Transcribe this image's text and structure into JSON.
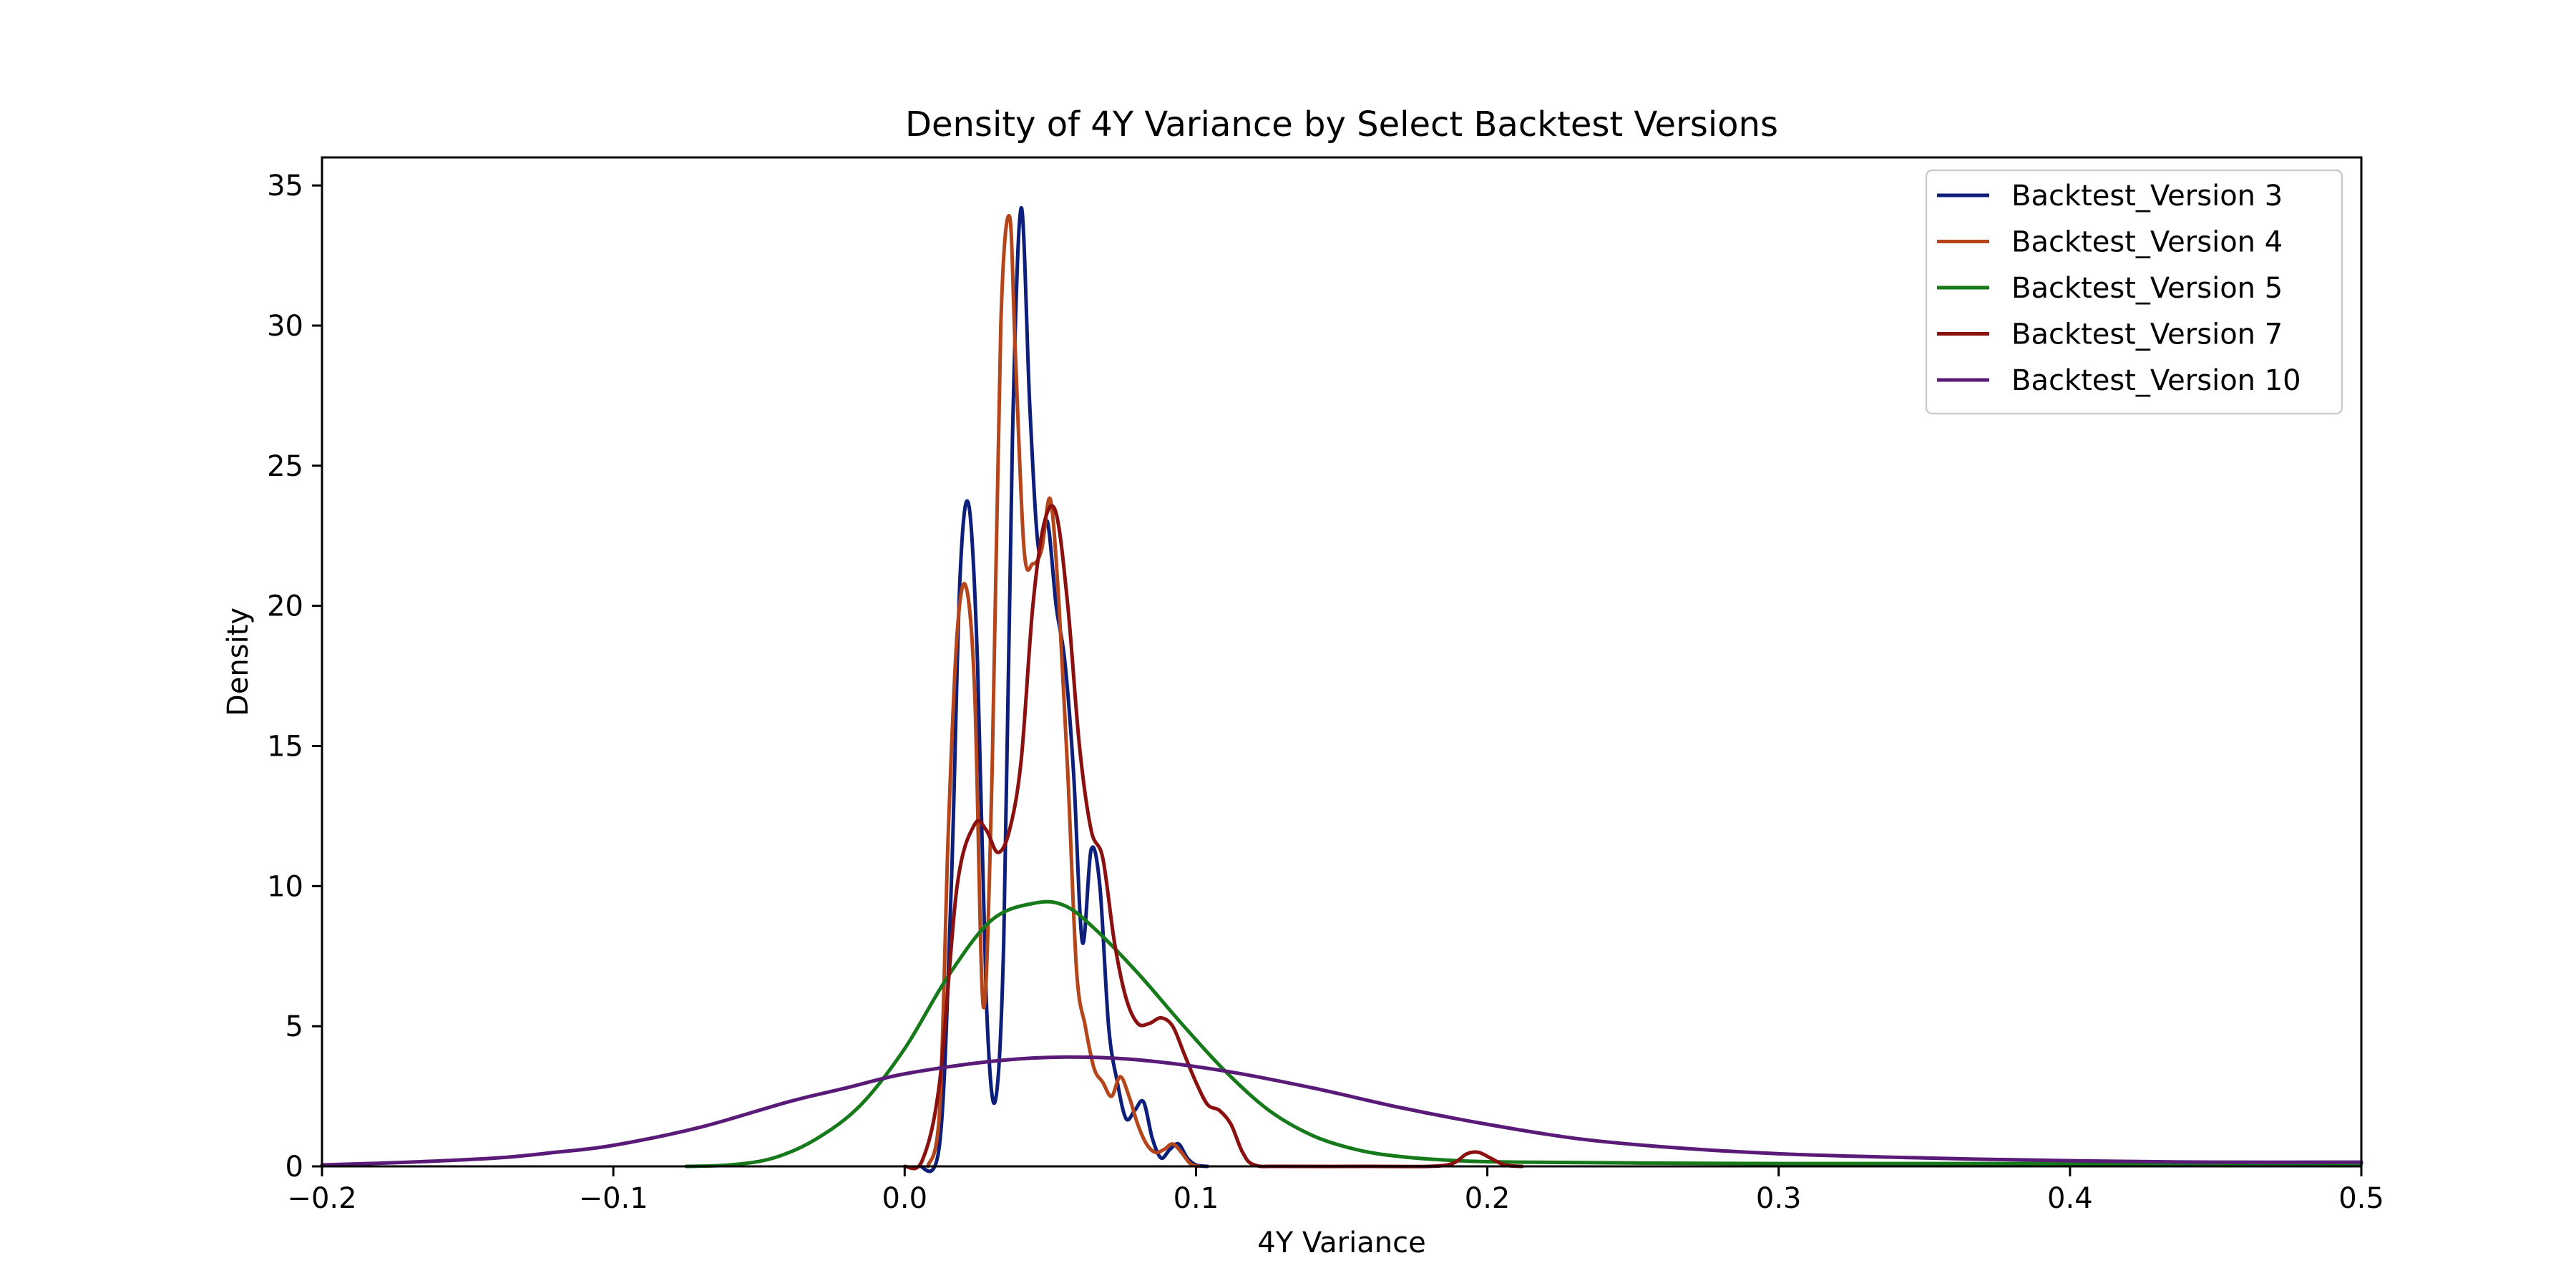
{
  "chart_data": {
    "type": "line",
    "title": "Density of 4Y Variance by Select Backtest Versions",
    "xlabel": "4Y Variance",
    "ylabel": "Density",
    "xlim": [
      -0.2,
      0.5
    ],
    "ylim": [
      0,
      36
    ],
    "xticks": [
      -0.2,
      -0.1,
      0.0,
      0.1,
      0.2,
      0.3,
      0.4,
      0.5
    ],
    "xtick_labels": [
      "−0.2",
      "−0.1",
      "0.0",
      "0.1",
      "0.2",
      "0.3",
      "0.4",
      "0.5"
    ],
    "yticks": [
      0,
      5,
      10,
      15,
      20,
      25,
      30,
      35
    ],
    "ytick_labels": [
      "0",
      "5",
      "10",
      "15",
      "20",
      "25",
      "30",
      "35"
    ],
    "grid": false,
    "legend_position": "top-right",
    "series": [
      {
        "name": "Backtest_Version 3",
        "color": "#0d1f7a",
        "x": [
          0.005,
          0.012,
          0.016,
          0.019,
          0.022,
          0.025,
          0.028,
          0.031,
          0.034,
          0.037,
          0.04,
          0.043,
          0.046,
          0.049,
          0.052,
          0.055,
          0.058,
          0.061,
          0.064,
          0.067,
          0.07,
          0.073,
          0.076,
          0.079,
          0.082,
          0.085,
          0.088,
          0.091,
          0.094,
          0.097,
          0.1,
          0.104
        ],
        "y": [
          0,
          0.8,
          10,
          21,
          23.6,
          18,
          6,
          2.3,
          8,
          26,
          34.2,
          27,
          22,
          23,
          20,
          18,
          14,
          8,
          11.3,
          10,
          5,
          3,
          1.7,
          2,
          2.3,
          1,
          0.3,
          0.6,
          0.8,
          0.3,
          0.05,
          0
        ]
      },
      {
        "name": "Backtest_Version 4",
        "color": "#b5451b",
        "x": [
          0.008,
          0.012,
          0.015,
          0.018,
          0.021,
          0.024,
          0.027,
          0.03,
          0.033,
          0.036,
          0.038,
          0.041,
          0.044,
          0.047,
          0.05,
          0.053,
          0.056,
          0.059,
          0.062,
          0.065,
          0.068,
          0.071,
          0.074,
          0.077,
          0.08,
          0.083,
          0.086,
          0.089,
          0.092,
          0.095,
          0.098,
          0.101
        ],
        "y": [
          0,
          2,
          12,
          19,
          20.7,
          17,
          5.7,
          14,
          30,
          33.9,
          29,
          22,
          21.5,
          22,
          23.8,
          20,
          14,
          7,
          5,
          3.5,
          3,
          2.5,
          3.2,
          2.5,
          1.5,
          0.8,
          0.5,
          0.6,
          0.8,
          0.5,
          0.1,
          0
        ]
      },
      {
        "name": "Backtest_Version 5",
        "color": "#177a1a",
        "x": [
          -0.075,
          -0.06,
          -0.045,
          -0.03,
          -0.015,
          0.0,
          0.015,
          0.03,
          0.045,
          0.055,
          0.065,
          0.08,
          0.095,
          0.11,
          0.125,
          0.14,
          0.155,
          0.17,
          0.19,
          0.21,
          0.25,
          0.3,
          0.35,
          0.4,
          0.45,
          0.5
        ],
        "y": [
          0,
          0.05,
          0.3,
          1.0,
          2.2,
          4.2,
          6.8,
          8.8,
          9.4,
          9.3,
          8.5,
          6.9,
          5.1,
          3.4,
          2.0,
          1.1,
          0.6,
          0.35,
          0.2,
          0.15,
          0.12,
          0.1,
          0.1,
          0.1,
          0.1,
          0.1
        ]
      },
      {
        "name": "Backtest_Version 7",
        "color": "#8b1010",
        "x": [
          0.0,
          0.006,
          0.012,
          0.018,
          0.024,
          0.028,
          0.032,
          0.036,
          0.04,
          0.044,
          0.048,
          0.052,
          0.056,
          0.06,
          0.064,
          0.068,
          0.072,
          0.076,
          0.08,
          0.084,
          0.088,
          0.092,
          0.096,
          0.1,
          0.104,
          0.108,
          0.112,
          0.116,
          0.12,
          0.13,
          0.16,
          0.18,
          0.188,
          0.193,
          0.197,
          0.201,
          0.206,
          0.212
        ],
        "y": [
          0,
          0.2,
          3,
          10,
          12.2,
          12.0,
          11.2,
          12,
          14.5,
          20,
          23,
          23.3,
          20,
          15,
          12,
          11,
          8,
          6,
          5.1,
          5.1,
          5.3,
          5.0,
          4.0,
          3.0,
          2.2,
          2.0,
          1.5,
          0.5,
          0.05,
          0,
          0,
          0,
          0.1,
          0.45,
          0.5,
          0.3,
          0.05,
          0
        ]
      },
      {
        "name": "Backtest_Version 10",
        "color": "#5a1a78",
        "x": [
          -0.2,
          -0.17,
          -0.14,
          -0.12,
          -0.1,
          -0.07,
          -0.04,
          -0.02,
          0.0,
          0.03,
          0.055,
          0.08,
          0.11,
          0.14,
          0.17,
          0.2,
          0.23,
          0.26,
          0.3,
          0.35,
          0.4,
          0.45,
          0.5
        ],
        "y": [
          0.05,
          0.15,
          0.3,
          0.5,
          0.75,
          1.4,
          2.3,
          2.8,
          3.3,
          3.75,
          3.9,
          3.8,
          3.4,
          2.8,
          2.1,
          1.5,
          1.0,
          0.7,
          0.45,
          0.3,
          0.2,
          0.15,
          0.15
        ]
      }
    ]
  }
}
